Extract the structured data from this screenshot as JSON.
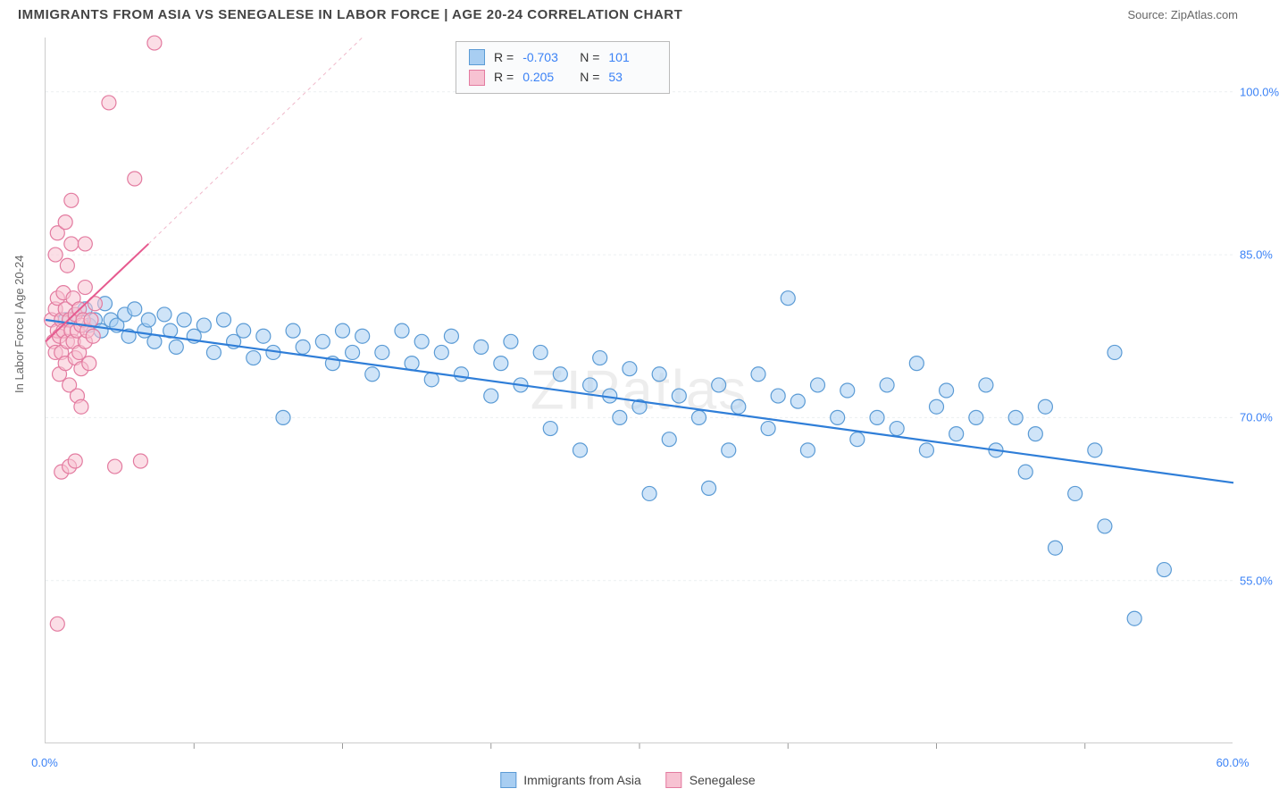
{
  "title": "IMMIGRANTS FROM ASIA VS SENEGALESE IN LABOR FORCE | AGE 20-24 CORRELATION CHART",
  "source": "Source: ZipAtlas.com",
  "watermark": "ZIPatlas",
  "y_axis_label": "In Labor Force | Age 20-24",
  "chart": {
    "type": "scatter",
    "background_color": "#ffffff",
    "border_color": "#cccccc",
    "grid_color": "#eceff1",
    "xlim": [
      0,
      60
    ],
    "ylim": [
      40,
      105
    ],
    "x_ticks": [
      {
        "v": 0,
        "label": "0.0%"
      },
      {
        "v": 60,
        "label": "60.0%"
      }
    ],
    "y_ticks": [
      {
        "v": 55,
        "label": "55.0%"
      },
      {
        "v": 70,
        "label": "70.0%"
      },
      {
        "v": 85,
        "label": "85.0%"
      },
      {
        "v": 100,
        "label": "100.0%"
      }
    ],
    "x_minor_ticks": [
      7.5,
      15,
      22.5,
      30,
      37.5,
      45,
      52.5
    ],
    "marker_radius": 8,
    "marker_stroke_width": 1.2,
    "series": [
      {
        "name": "Immigrants from Asia",
        "fill": "#a8cef2",
        "fill_opacity": 0.55,
        "stroke": "#5b9bd5",
        "R": "-0.703",
        "N": "101",
        "trend": {
          "x1": 0,
          "y1": 79,
          "x2": 60,
          "y2": 64,
          "stroke": "#2f7ed8",
          "width": 2.2
        },
        "points": [
          [
            1,
            79
          ],
          [
            1.5,
            79.5
          ],
          [
            2,
            80
          ],
          [
            2.2,
            78.5
          ],
          [
            2.5,
            79
          ],
          [
            2.8,
            78
          ],
          [
            3,
            80.5
          ],
          [
            3.3,
            79
          ],
          [
            3.6,
            78.5
          ],
          [
            4,
            79.5
          ],
          [
            4.2,
            77.5
          ],
          [
            4.5,
            80
          ],
          [
            5,
            78
          ],
          [
            5.2,
            79
          ],
          [
            5.5,
            77
          ],
          [
            6,
            79.5
          ],
          [
            6.3,
            78
          ],
          [
            6.6,
            76.5
          ],
          [
            7,
            79
          ],
          [
            7.5,
            77.5
          ],
          [
            8,
            78.5
          ],
          [
            8.5,
            76
          ],
          [
            9,
            79
          ],
          [
            9.5,
            77
          ],
          [
            10,
            78
          ],
          [
            10.5,
            75.5
          ],
          [
            11,
            77.5
          ],
          [
            11.5,
            76
          ],
          [
            12,
            70
          ],
          [
            12.5,
            78
          ],
          [
            13,
            76.5
          ],
          [
            14,
            77
          ],
          [
            14.5,
            75
          ],
          [
            15,
            78
          ],
          [
            15.5,
            76
          ],
          [
            16,
            77.5
          ],
          [
            16.5,
            74
          ],
          [
            17,
            76
          ],
          [
            18,
            78
          ],
          [
            18.5,
            75
          ],
          [
            19,
            77
          ],
          [
            19.5,
            73.5
          ],
          [
            20,
            76
          ],
          [
            20.5,
            77.5
          ],
          [
            21,
            74
          ],
          [
            22,
            76.5
          ],
          [
            22.5,
            72
          ],
          [
            23,
            75
          ],
          [
            23.5,
            77
          ],
          [
            24,
            73
          ],
          [
            25,
            76
          ],
          [
            25.5,
            69
          ],
          [
            26,
            74
          ],
          [
            27,
            67
          ],
          [
            27.5,
            73
          ],
          [
            28,
            75.5
          ],
          [
            28.5,
            72
          ],
          [
            29,
            70
          ],
          [
            29.5,
            74.5
          ],
          [
            30,
            71
          ],
          [
            30.5,
            63
          ],
          [
            31,
            74
          ],
          [
            31.5,
            68
          ],
          [
            32,
            72
          ],
          [
            33,
            70
          ],
          [
            33.5,
            63.5
          ],
          [
            34,
            73
          ],
          [
            34.5,
            67
          ],
          [
            35,
            71
          ],
          [
            36,
            74
          ],
          [
            36.5,
            69
          ],
          [
            37,
            72
          ],
          [
            37.5,
            81
          ],
          [
            38,
            71.5
          ],
          [
            38.5,
            67
          ],
          [
            39,
            73
          ],
          [
            40,
            70
          ],
          [
            40.5,
            72.5
          ],
          [
            41,
            68
          ],
          [
            42,
            70
          ],
          [
            42.5,
            73
          ],
          [
            43,
            69
          ],
          [
            44,
            75
          ],
          [
            44.5,
            67
          ],
          [
            45,
            71
          ],
          [
            45.5,
            72.5
          ],
          [
            46,
            68.5
          ],
          [
            47,
            70
          ],
          [
            47.5,
            73
          ],
          [
            48,
            67
          ],
          [
            49,
            70
          ],
          [
            49.5,
            65
          ],
          [
            50,
            68.5
          ],
          [
            50.5,
            71
          ],
          [
            51,
            58
          ],
          [
            52,
            63
          ],
          [
            53,
            67
          ],
          [
            53.5,
            60
          ],
          [
            54,
            76
          ],
          [
            55,
            51.5
          ],
          [
            56.5,
            56
          ]
        ]
      },
      {
        "name": "Senegalese",
        "fill": "#f7c2d2",
        "fill_opacity": 0.55,
        "stroke": "#e37ba0",
        "R": "0.205",
        "N": "53",
        "trend": {
          "x1": 0,
          "y1": 77,
          "x2": 5.2,
          "y2": 86,
          "stroke": "#e65a8f",
          "width": 2
        },
        "trend_dashed": {
          "x1": 5.2,
          "y1": 86,
          "x2": 16,
          "y2": 105,
          "stroke": "#f0b8ca",
          "width": 1,
          "dash": "4,4"
        },
        "points": [
          [
            0.3,
            79
          ],
          [
            0.4,
            77
          ],
          [
            0.5,
            80
          ],
          [
            0.5,
            76
          ],
          [
            0.6,
            78
          ],
          [
            0.6,
            81
          ],
          [
            0.7,
            77.5
          ],
          [
            0.7,
            74
          ],
          [
            0.8,
            79
          ],
          [
            0.8,
            76
          ],
          [
            0.9,
            81.5
          ],
          [
            0.9,
            78
          ],
          [
            1.0,
            75
          ],
          [
            1.0,
            80
          ],
          [
            1.1,
            77
          ],
          [
            1.1,
            84
          ],
          [
            1.2,
            79
          ],
          [
            1.2,
            73
          ],
          [
            1.3,
            78
          ],
          [
            1.3,
            86
          ],
          [
            1.4,
            77
          ],
          [
            1.4,
            81
          ],
          [
            1.5,
            75.5
          ],
          [
            1.5,
            79.5
          ],
          [
            1.6,
            78
          ],
          [
            1.6,
            72
          ],
          [
            1.7,
            80
          ],
          [
            1.7,
            76
          ],
          [
            1.8,
            78.5
          ],
          [
            1.8,
            74.5
          ],
          [
            1.9,
            79
          ],
          [
            2.0,
            77
          ],
          [
            2.0,
            82
          ],
          [
            2.1,
            78
          ],
          [
            2.2,
            75
          ],
          [
            2.3,
            79
          ],
          [
            2.4,
            77.5
          ],
          [
            2.5,
            80.5
          ],
          [
            0.5,
            85
          ],
          [
            0.6,
            87
          ],
          [
            1.0,
            88
          ],
          [
            1.3,
            90
          ],
          [
            2.0,
            86
          ],
          [
            0.8,
            65
          ],
          [
            1.2,
            65.5
          ],
          [
            1.5,
            66
          ],
          [
            3.5,
            65.5
          ],
          [
            4.8,
            66
          ],
          [
            0.6,
            51
          ],
          [
            5.5,
            104.5
          ],
          [
            3.2,
            99
          ],
          [
            4.5,
            92
          ],
          [
            1.8,
            71
          ]
        ]
      }
    ]
  },
  "corr_legend": {
    "rows": [
      {
        "swatch_fill": "#a8cef2",
        "swatch_stroke": "#5b9bd5",
        "R": "-0.703",
        "N": "101"
      },
      {
        "swatch_fill": "#f7c2d2",
        "swatch_stroke": "#e37ba0",
        "R": "0.205",
        "N": "53"
      }
    ]
  },
  "bottom_legend": [
    {
      "swatch_fill": "#a8cef2",
      "swatch_stroke": "#5b9bd5",
      "label": "Immigrants from Asia"
    },
    {
      "swatch_fill": "#f7c2d2",
      "swatch_stroke": "#e37ba0",
      "label": "Senegalese"
    }
  ]
}
